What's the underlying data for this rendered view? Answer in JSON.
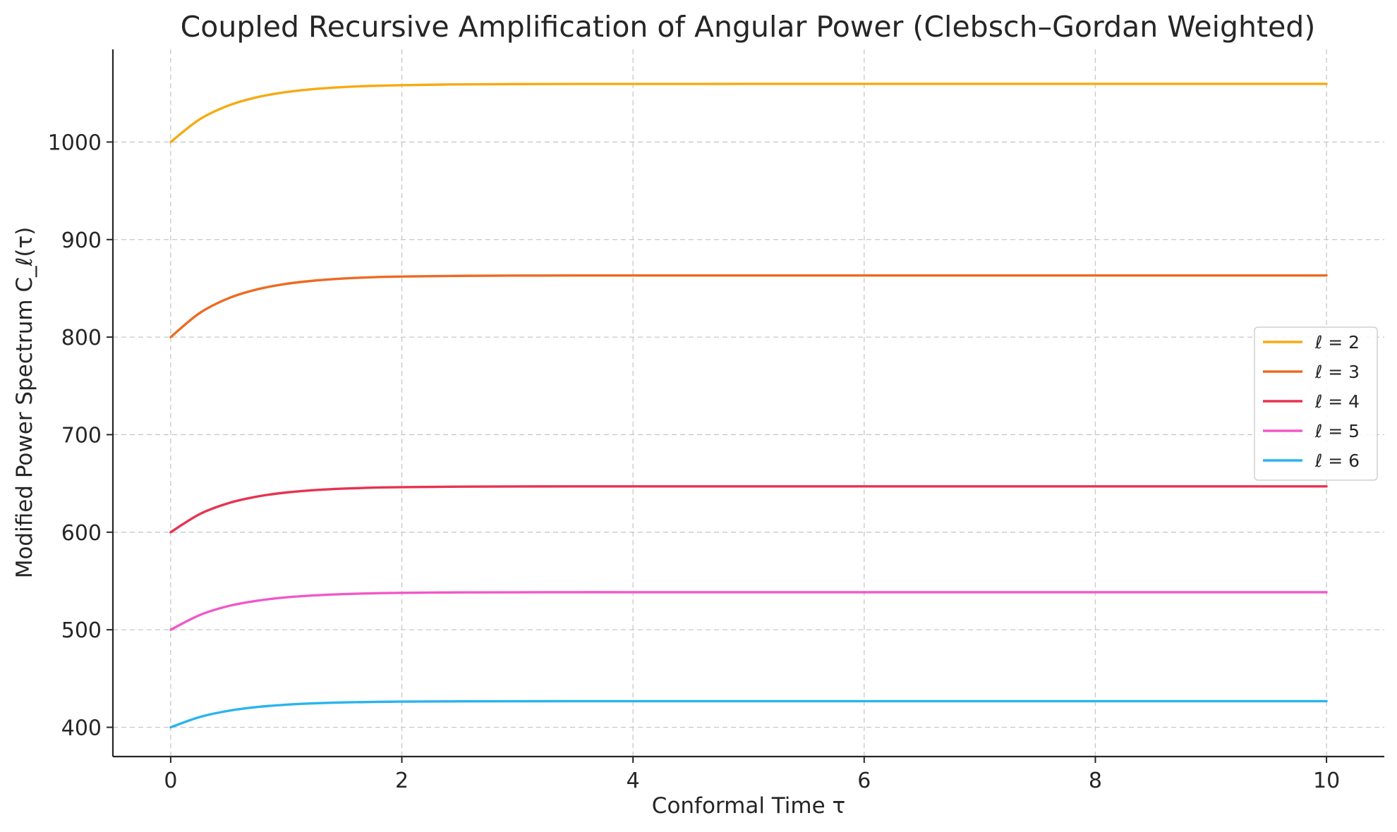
{
  "chart_data": {
    "type": "line",
    "title": "Coupled Recursive Amplification of Angular Power (Clebsch–Gordan Weighted)",
    "xlabel": "Conformal Time τ",
    "ylabel": "Modified Power Spectrum C_ℓ(τ)",
    "xlim": [
      -0.5,
      10.5
    ],
    "ylim": [
      370,
      1095
    ],
    "xticks": [
      0,
      2,
      4,
      6,
      8,
      10
    ],
    "yticks": [
      400,
      500,
      600,
      700,
      800,
      900,
      1000
    ],
    "grid": true,
    "legend_position": "center-right",
    "x": [
      0,
      0.25,
      0.5,
      0.75,
      1,
      1.25,
      1.5,
      1.75,
      2,
      2.5,
      3,
      3.5,
      4,
      5,
      6,
      7,
      8,
      9,
      10
    ],
    "series": [
      {
        "name": "ℓ = 2",
        "color": "#f5ab13",
        "values": [
          1000,
          1023.2,
          1037.4,
          1046.0,
          1051.2,
          1054.4,
          1056.4,
          1057.6,
          1058.3,
          1059.1,
          1059.4,
          1059.5,
          1059.5,
          1059.6,
          1059.6,
          1059.6,
          1059.6,
          1059.6,
          1059.6
        ]
      },
      {
        "name": "ℓ = 3",
        "color": "#ec6b23",
        "values": [
          800,
          824.6,
          839.8,
          849.0,
          854.6,
          858.0,
          860.1,
          861.4,
          862.1,
          862.8,
          863.1,
          863.2,
          863.2,
          863.2,
          863.2,
          863.2,
          863.2,
          863.2,
          863.2
        ]
      },
      {
        "name": "ℓ = 4",
        "color": "#e83251",
        "values": [
          600,
          618.5,
          629.8,
          636.6,
          640.7,
          643.2,
          644.7,
          645.7,
          646.2,
          646.7,
          646.9,
          647.0,
          647.0,
          647.0,
          647.0,
          647.0,
          647.0,
          647.0,
          647.0
        ]
      },
      {
        "name": "ℓ = 5",
        "color": "#f158c8",
        "values": [
          500,
          515.0,
          524.3,
          529.8,
          533.2,
          535.3,
          536.6,
          537.4,
          537.8,
          538.3,
          538.4,
          538.5,
          538.5,
          538.5,
          538.5,
          538.5,
          538.5,
          538.5,
          538.5
        ]
      },
      {
        "name": "ℓ = 6",
        "color": "#2ab4ec",
        "values": [
          400,
          410.5,
          416.9,
          420.8,
          423.2,
          424.6,
          425.5,
          426.0,
          426.3,
          426.6,
          426.7,
          426.8,
          426.8,
          426.8,
          426.8,
          426.8,
          426.8,
          426.8,
          426.8
        ]
      }
    ]
  }
}
